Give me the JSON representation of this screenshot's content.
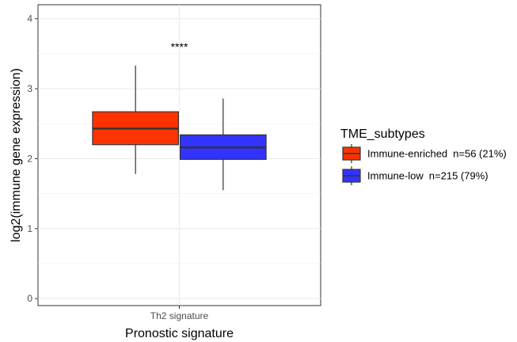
{
  "chart_data": {
    "type": "box",
    "xlabel": "Pronostic signature",
    "ylabel": "log2(immune gene expression)",
    "categories": [
      "Th2 signature"
    ],
    "ylim": [
      -0.1,
      4.2
    ],
    "yticks": [
      0,
      1,
      2,
      3,
      4
    ],
    "grid": true,
    "legend": {
      "title": "TME_subtypes",
      "position": "right",
      "entries": [
        {
          "label": "Immune-enriched",
          "count": "n=56 (21%)",
          "color": "#ff3300"
        },
        {
          "label": "Immune-low",
          "count": "n=215 (79%)",
          "color": "#3333ff"
        }
      ]
    },
    "series": [
      {
        "name": "Immune-enriched",
        "color": "#ff3300",
        "boxes": [
          {
            "category": "Th2 signature",
            "min": 1.78,
            "q1": 2.2,
            "median": 2.43,
            "q3": 2.67,
            "max": 3.33
          }
        ]
      },
      {
        "name": "Immune-low",
        "color": "#3333ff",
        "boxes": [
          {
            "category": "Th2 signature",
            "min": 1.55,
            "q1": 1.99,
            "median": 2.16,
            "q3": 2.34,
            "max": 2.86
          }
        ]
      }
    ],
    "annotations": [
      {
        "text": "****",
        "category": "Th2 signature",
        "y": 3.6
      }
    ]
  }
}
